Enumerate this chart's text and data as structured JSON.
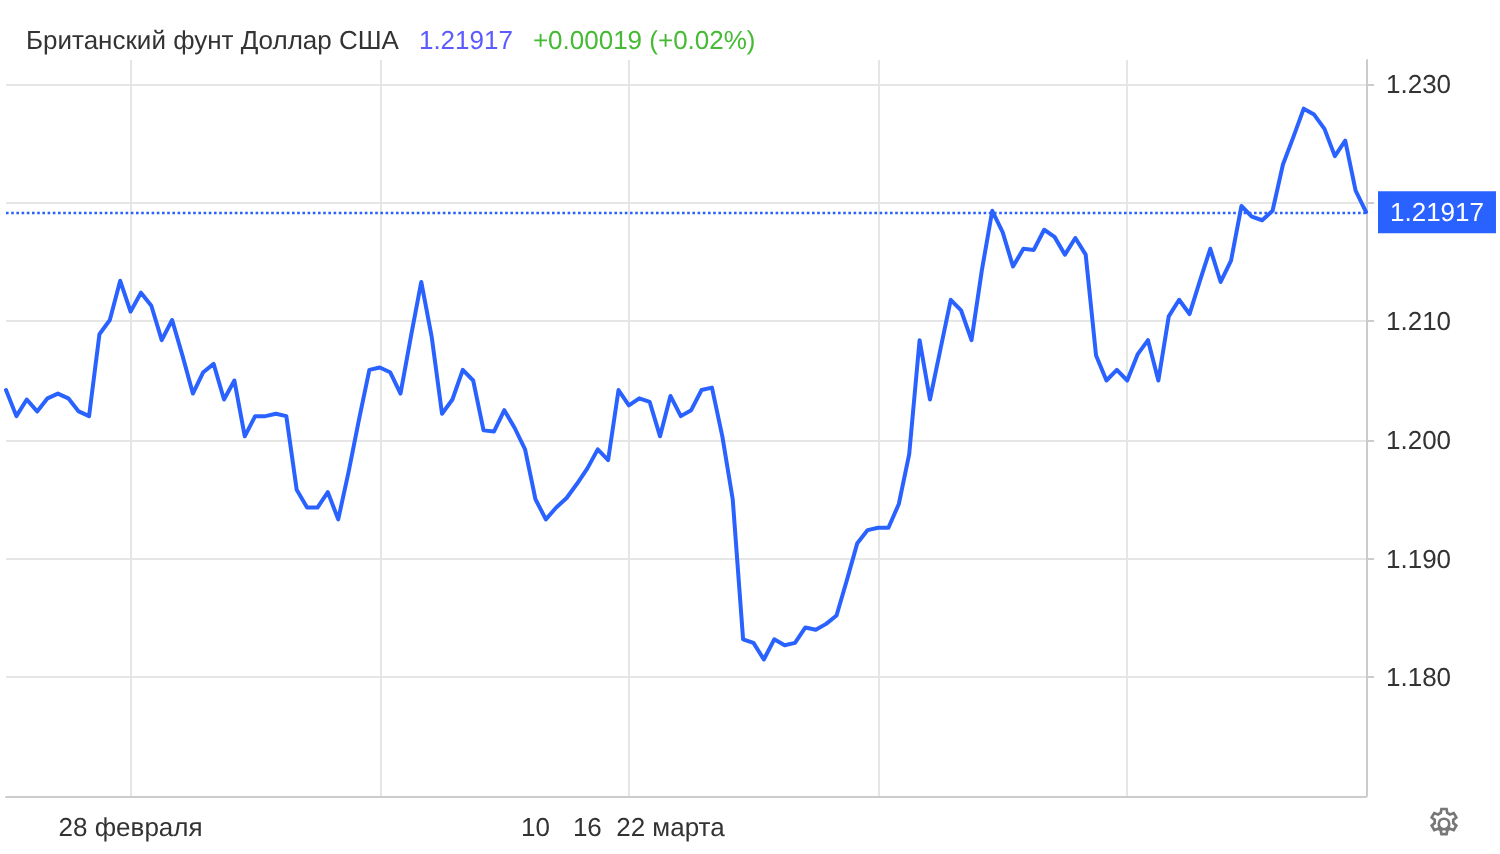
{
  "chart_data": {
    "type": "line",
    "title": "Британский фунт Доллар США",
    "subtitle": "1.21917",
    "annotations": [
      "+0.00019 (+0.02%)"
    ],
    "categories": [
      null,
      null,
      null,
      null,
      null,
      null,
      null,
      null,
      null,
      null,
      null,
      null,
      "28 февраля",
      null,
      null,
      null,
      null,
      null,
      null,
      null,
      null,
      null,
      null,
      null,
      null,
      null,
      null,
      null,
      null,
      null,
      null,
      null,
      null,
      null,
      null,
      null,
      null,
      null,
      null,
      null,
      null,
      null,
      null,
      null,
      null,
      null,
      null,
      null,
      null,
      null,
      null,
      "10",
      null,
      null,
      null,
      null,
      "16",
      null,
      null,
      null,
      null,
      null,
      null,
      null,
      "22 марта",
      null,
      null,
      null,
      null,
      null,
      null,
      null,
      null,
      null,
      null,
      null,
      null,
      null,
      null,
      null,
      null,
      null,
      null,
      null,
      null,
      null,
      null,
      null,
      null,
      null,
      null,
      null,
      null,
      null,
      null,
      null,
      null,
      null,
      null,
      null,
      null,
      null,
      null,
      null,
      null,
      null,
      null,
      null,
      null,
      null,
      null,
      null,
      null,
      null,
      null,
      null,
      null,
      null,
      null,
      null,
      null,
      null,
      null,
      null,
      null,
      null,
      null,
      null,
      null,
      null,
      null,
      null
    ],
    "series": [
      {
        "color": "#2962ff",
        "values": [
          1.2042,
          1.202,
          1.2034,
          1.2024,
          1.2035,
          1.2039,
          1.2035,
          1.2024,
          1.202,
          1.2089,
          1.2101,
          1.2134,
          1.2108,
          1.2124,
          1.2113,
          1.2084,
          1.2101,
          1.2071,
          1.2039,
          1.2057,
          1.2064,
          1.2034,
          1.205,
          1.2003,
          1.202,
          1.202,
          1.2022,
          1.202,
          1.1958,
          1.1943,
          1.1943,
          1.1956,
          1.1933,
          1.1973,
          1.2017,
          1.2059,
          1.2061,
          1.2057,
          1.2039,
          1.2087,
          1.2133,
          1.2087,
          1.2022,
          1.2034,
          1.2059,
          1.205,
          1.2008,
          1.2007,
          1.2025,
          1.201,
          1.1992,
          1.195,
          1.1933,
          1.1943,
          1.1951,
          1.1963,
          1.1976,
          1.1992,
          1.1983,
          1.2042,
          1.2029,
          1.2035,
          1.2032,
          1.2003,
          1.2037,
          1.202,
          1.2025,
          1.2042,
          1.2044,
          1.2003,
          1.195,
          1.1832,
          1.1829,
          1.1815,
          1.1832,
          1.1827,
          1.1829,
          1.1842,
          1.184,
          1.1845,
          1.1852,
          1.1882,
          1.1913,
          1.1924,
          1.1926,
          1.1926,
          1.1946,
          1.1988,
          1.2084,
          1.2034,
          1.2076,
          1.2118,
          1.2109,
          1.2084,
          1.2143,
          1.2193,
          1.2175,
          1.2146,
          1.2161,
          1.216,
          1.2177,
          1.2171,
          1.2156,
          1.217,
          1.2156,
          1.2071,
          1.205,
          1.2059,
          1.205,
          1.2072,
          1.2084,
          1.205,
          1.2104,
          1.2118,
          1.2106,
          1.2134,
          1.2161,
          1.2133,
          1.2151,
          1.2197,
          1.2188,
          1.2185,
          1.2193,
          1.2232,
          1.2255,
          1.2279,
          1.2274,
          1.2262,
          1.2239,
          1.2252,
          1.221,
          1.2192
        ]
      }
    ],
    "ylim": [
      1.17,
      1.232
    ],
    "yticks": [
      {
        "value": 1.18,
        "label": "1.180"
      },
      {
        "value": 1.19,
        "label": "1.190"
      },
      {
        "value": 1.2,
        "label": "1.200"
      },
      {
        "value": 1.21,
        "label": "1.210"
      },
      {
        "value": 1.22,
        "label": null
      },
      {
        "value": 1.23,
        "label": "1.230"
      }
    ],
    "ref_lines": [
      {
        "axis": "y",
        "value": 1.21917,
        "label": "1.21917",
        "color": "#2962ff",
        "line_style": "dotted"
      }
    ],
    "grid": true,
    "marker": "none",
    "line_style": "solid"
  }
}
